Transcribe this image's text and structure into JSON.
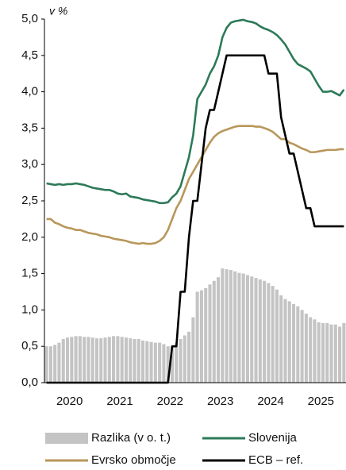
{
  "chart_data": {
    "type": "combo",
    "annotation": "v %",
    "categories": [
      null,
      null,
      null,
      null,
      null,
      null,
      "2020",
      null,
      null,
      null,
      null,
      null,
      null,
      null,
      null,
      null,
      null,
      null,
      "2021",
      null,
      null,
      null,
      null,
      null,
      null,
      null,
      null,
      null,
      null,
      null,
      "2022",
      null,
      null,
      null,
      null,
      null,
      null,
      null,
      null,
      null,
      null,
      null,
      "2023",
      null,
      null,
      null,
      null,
      null,
      null,
      null,
      null,
      null,
      null,
      null,
      "2024",
      null,
      null,
      null,
      null,
      null,
      null,
      null,
      null,
      null,
      null,
      null,
      "2025",
      null,
      null,
      null,
      null,
      null
    ],
    "ylim": [
      0,
      5
    ],
    "yticks": [
      {
        "value": 0,
        "label": "0,0"
      },
      {
        "value": 0.5,
        "label": "0,5"
      },
      {
        "value": 1,
        "label": "1,0"
      },
      {
        "value": 1.5,
        "label": "1,5"
      },
      {
        "value": 2,
        "label": "2,0"
      },
      {
        "value": 2.5,
        "label": "2,5"
      },
      {
        "value": 3,
        "label": "3,0"
      },
      {
        "value": 3.5,
        "label": "3,5"
      },
      {
        "value": 4,
        "label": "4,0"
      },
      {
        "value": 4.5,
        "label": "4,5"
      },
      {
        "value": 5,
        "label": "5,0"
      }
    ],
    "series": [
      {
        "name": "Razlika (v o. t.)",
        "kind": "bar",
        "color": "#c4c4c4",
        "values": [
          0.5,
          0.5,
          0.52,
          0.55,
          0.6,
          0.62,
          0.63,
          0.64,
          0.64,
          0.63,
          0.63,
          0.62,
          0.61,
          0.61,
          0.62,
          0.63,
          0.64,
          0.64,
          0.63,
          0.62,
          0.61,
          0.6,
          0.6,
          0.58,
          0.57,
          0.56,
          0.55,
          0.55,
          0.53,
          0.5,
          0.5,
          0.55,
          0.6,
          0.65,
          0.7,
          0.9,
          1.25,
          1.27,
          1.3,
          1.35,
          1.4,
          1.45,
          1.57,
          1.56,
          1.55,
          1.53,
          1.51,
          1.5,
          1.48,
          1.46,
          1.44,
          1.42,
          1.4,
          1.37,
          1.33,
          1.28,
          1.2,
          1.15,
          1.12,
          1.08,
          1.05,
          1.0,
          0.95,
          0.9,
          0.87,
          0.83,
          0.82,
          0.82,
          0.8,
          0.8,
          0.77,
          0.82
        ]
      },
      {
        "name": "Slovenija",
        "kind": "line",
        "color": "#2c7a58",
        "values": [
          2.74,
          2.73,
          2.72,
          2.73,
          2.72,
          2.73,
          2.73,
          2.74,
          2.73,
          2.72,
          2.7,
          2.68,
          2.67,
          2.66,
          2.65,
          2.65,
          2.63,
          2.6,
          2.59,
          2.6,
          2.56,
          2.55,
          2.54,
          2.52,
          2.51,
          2.5,
          2.49,
          2.47,
          2.47,
          2.48,
          2.55,
          2.6,
          2.7,
          2.9,
          3.1,
          3.4,
          3.9,
          4.0,
          4.1,
          4.25,
          4.35,
          4.5,
          4.75,
          4.88,
          4.95,
          4.97,
          4.98,
          4.99,
          4.97,
          4.96,
          4.94,
          4.9,
          4.87,
          4.85,
          4.82,
          4.78,
          4.72,
          4.65,
          4.55,
          4.45,
          4.38,
          4.35,
          4.32,
          4.28,
          4.18,
          4.08,
          4.0,
          4.0,
          4.01,
          3.98,
          3.95,
          4.03
        ]
      },
      {
        "name": "Evrsko območje",
        "kind": "line",
        "color": "#b8975a",
        "values": [
          2.25,
          2.25,
          2.2,
          2.18,
          2.15,
          2.13,
          2.12,
          2.1,
          2.1,
          2.08,
          2.06,
          2.05,
          2.04,
          2.02,
          2.01,
          2.0,
          1.98,
          1.97,
          1.96,
          1.95,
          1.93,
          1.92,
          1.91,
          1.92,
          1.91,
          1.91,
          1.92,
          1.95,
          2.0,
          2.1,
          2.25,
          2.4,
          2.5,
          2.65,
          2.8,
          2.9,
          3.0,
          3.1,
          3.2,
          3.3,
          3.38,
          3.43,
          3.46,
          3.48,
          3.5,
          3.52,
          3.53,
          3.53,
          3.53,
          3.53,
          3.52,
          3.52,
          3.5,
          3.48,
          3.45,
          3.4,
          3.35,
          3.35,
          3.3,
          3.28,
          3.25,
          3.22,
          3.2,
          3.17,
          3.17,
          3.18,
          3.19,
          3.2,
          3.2,
          3.2,
          3.21,
          3.21
        ]
      },
      {
        "name": "ECB – ref.",
        "kind": "line",
        "color": "#000000",
        "values": [
          0,
          0,
          0,
          0,
          0,
          0,
          0,
          0,
          0,
          0,
          0,
          0,
          0,
          0,
          0,
          0,
          0,
          0,
          0,
          0,
          0,
          0,
          0,
          0,
          0,
          0,
          0,
          0,
          0,
          0,
          0.5,
          0.5,
          1.25,
          1.25,
          2.0,
          2.5,
          2.5,
          3.0,
          3.5,
          3.75,
          3.75,
          4.0,
          4.25,
          4.5,
          4.5,
          4.5,
          4.5,
          4.5,
          4.5,
          4.5,
          4.5,
          4.5,
          4.5,
          4.25,
          4.25,
          4.25,
          3.65,
          3.4,
          3.15,
          3.15,
          2.9,
          2.65,
          2.4,
          2.4,
          2.15,
          2.15,
          2.15,
          2.15,
          2.15,
          2.15,
          2.15,
          2.15
        ]
      }
    ]
  }
}
